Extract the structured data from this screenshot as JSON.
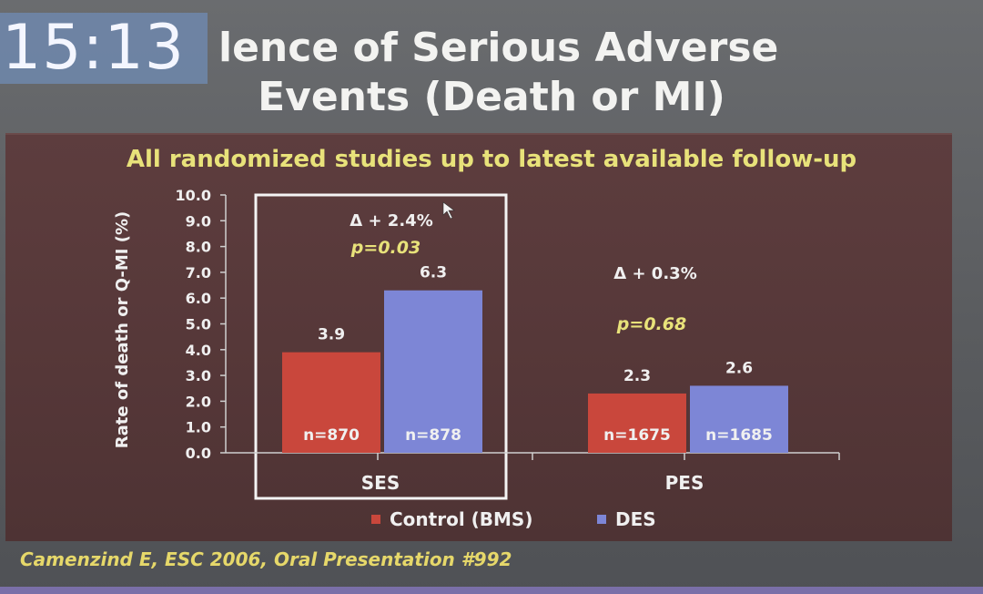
{
  "overlay": {
    "timer": "15:13"
  },
  "slide": {
    "title_line1": "lence of Serious Adverse",
    "title_line2": "Events (Death or MI)",
    "subtitle": "All randomized studies up to latest available follow-up",
    "footer": "Camenzind E, ESC 2006, Oral Presentation #992"
  },
  "colors": {
    "control": "#c9473c",
    "des": "#7d86d6",
    "subtitle": "#e8e27a",
    "panel": "#5a3a3b"
  },
  "chart_data": {
    "type": "bar",
    "ylabel": "Rate of death or Q-MI (%)",
    "ylim": [
      0,
      10
    ],
    "y_ticks": [
      "0.0",
      "1.0",
      "2.0",
      "3.0",
      "4.0",
      "5.0",
      "6.0",
      "7.0",
      "8.0",
      "9.0",
      "10.0"
    ],
    "categories": [
      "SES",
      "PES"
    ],
    "series": [
      {
        "name": "Control (BMS)",
        "values": [
          3.9,
          2.3
        ],
        "labels": [
          "3.9",
          "2.3"
        ],
        "n": [
          "n=870",
          "n=1675"
        ]
      },
      {
        "name": "DES",
        "values": [
          6.3,
          2.6
        ],
        "labels": [
          "6.3",
          "2.6"
        ],
        "n": [
          "n=878",
          "n=1685"
        ]
      }
    ],
    "annotations": [
      {
        "category": "SES",
        "delta": "Δ + 2.4%",
        "p": "p=0.03",
        "highlighted": true
      },
      {
        "category": "PES",
        "delta": "Δ + 0.3%",
        "p": "p=0.68",
        "highlighted": false
      }
    ],
    "legend_position": "bottom-center"
  }
}
